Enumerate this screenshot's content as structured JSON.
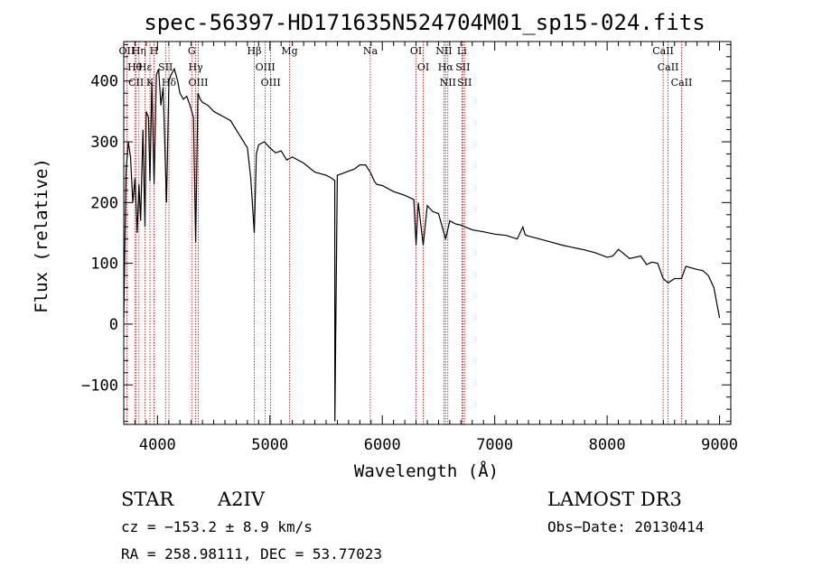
{
  "chart_data": {
    "type": "line",
    "title": "spec-56397-HD171635N524704M01_sp15-024.fits",
    "xlabel": "Wavelength (Å)",
    "ylabel": "Flux (relative)",
    "xlim": [
      3700,
      9100
    ],
    "ylim": [
      -165,
      465
    ],
    "xticks": [
      4000,
      5000,
      6000,
      7000,
      8000,
      9000
    ],
    "yticks": [
      -100,
      0,
      100,
      200,
      300,
      400
    ],
    "spectrum": {
      "name": "flux",
      "x": [
        3700,
        3720,
        3740,
        3760,
        3780,
        3800,
        3820,
        3835,
        3850,
        3870,
        3889,
        3900,
        3920,
        3933,
        3950,
        3970,
        3990,
        4010,
        4030,
        4050,
        4080,
        4102,
        4120,
        4150,
        4180,
        4200,
        4230,
        4260,
        4290,
        4320,
        4340,
        4360,
        4380,
        4400,
        4450,
        4500,
        4550,
        4600,
        4650,
        4700,
        4750,
        4800,
        4830,
        4861,
        4880,
        4900,
        4950,
        5000,
        5050,
        5100,
        5150,
        5200,
        5300,
        5400,
        5500,
        5550,
        5577,
        5578,
        5600,
        5650,
        5700,
        5750,
        5800,
        5850,
        5893,
        5930,
        5950,
        6000,
        6100,
        6200,
        6280,
        6300,
        6320,
        6364,
        6400,
        6450,
        6500,
        6563,
        6600,
        6650,
        6700,
        6800,
        6900,
        7000,
        7100,
        7200,
        7250,
        7270,
        7300,
        7400,
        7500,
        7600,
        7700,
        7800,
        7900,
        8000,
        8050,
        8100,
        8200,
        8300,
        8350,
        8400,
        8450,
        8498,
        8542,
        8600,
        8662,
        8700,
        8800,
        8850,
        8900,
        8950,
        9000
      ],
      "y": [
        10,
        250,
        300,
        275,
        200,
        240,
        150,
        230,
        170,
        320,
        160,
        350,
        340,
        235,
        400,
        230,
        410,
        420,
        360,
        390,
        200,
        400,
        410,
        420,
        400,
        380,
        370,
        375,
        360,
        340,
        135,
        380,
        370,
        365,
        360,
        350,
        345,
        340,
        335,
        320,
        305,
        290,
        240,
        150,
        280,
        295,
        300,
        290,
        282,
        285,
        270,
        275,
        265,
        250,
        245,
        240,
        236,
        -160,
        245,
        248,
        252,
        255,
        262,
        262,
        250,
        235,
        230,
        228,
        218,
        212,
        205,
        130,
        200,
        130,
        195,
        185,
        182,
        140,
        170,
        165,
        163,
        155,
        152,
        148,
        146,
        140,
        160,
        147,
        145,
        140,
        135,
        130,
        126,
        122,
        117,
        110,
        112,
        123,
        108,
        112,
        98,
        102,
        100,
        75,
        68,
        75,
        75,
        95,
        90,
        88,
        80,
        60,
        10
      ]
    },
    "spectral_lines": [
      {
        "label": "Hθ",
        "wavelength": 3798
      },
      {
        "label": "CII",
        "wavelength": 3810
      },
      {
        "label": "OII",
        "wavelength": 3727
      },
      {
        "label": "Hη",
        "wavelength": 3835
      },
      {
        "label": "Hε",
        "wavelength": 3889
      },
      {
        "label": "K",
        "wavelength": 3933
      },
      {
        "label": "H",
        "wavelength": 3970
      },
      {
        "label": "SII",
        "wavelength": 4072
      },
      {
        "label": "Hδ",
        "wavelength": 4102
      },
      {
        "label": "OIII",
        "wavelength": 4363
      },
      {
        "label": "Hγ",
        "wavelength": 4340
      },
      {
        "label": "G",
        "wavelength": 4305
      },
      {
        "label": "Hβ",
        "wavelength": 4861
      },
      {
        "label": "OIII",
        "wavelength": 4959
      },
      {
        "label": "OIII",
        "wavelength": 5007
      },
      {
        "label": "Mg",
        "wavelength": 5175
      },
      {
        "label": "Na",
        "wavelength": 5893
      },
      {
        "label": "OI",
        "wavelength": 6300
      },
      {
        "label": "OI",
        "wavelength": 6364
      },
      {
        "label": "Hα",
        "wavelength": 6563
      },
      {
        "label": "NII",
        "wavelength": 6548
      },
      {
        "label": "NII",
        "wavelength": 6583
      },
      {
        "label": "SII",
        "wavelength": 6716
      },
      {
        "label": "Li",
        "wavelength": 6708
      },
      {
        "label": "SII",
        "wavelength": 6731
      },
      {
        "label": "CaII",
        "wavelength": 8498
      },
      {
        "label": "CaII",
        "wavelength": 8542
      },
      {
        "label": "CaII",
        "wavelength": 8662
      }
    ]
  },
  "info": {
    "object_class": "STAR",
    "subclass": "A2IV",
    "survey": "LAMOST DR3",
    "cz": "cz = −153.2 ± 8.9 km/s",
    "obs_date": "Obs−Date: 20130414",
    "coords": "RA = 258.98111, DEC =  53.77023"
  },
  "colors": {
    "axis": "#000000",
    "spectrum": "#000000",
    "line_marker": "#cc0000"
  }
}
